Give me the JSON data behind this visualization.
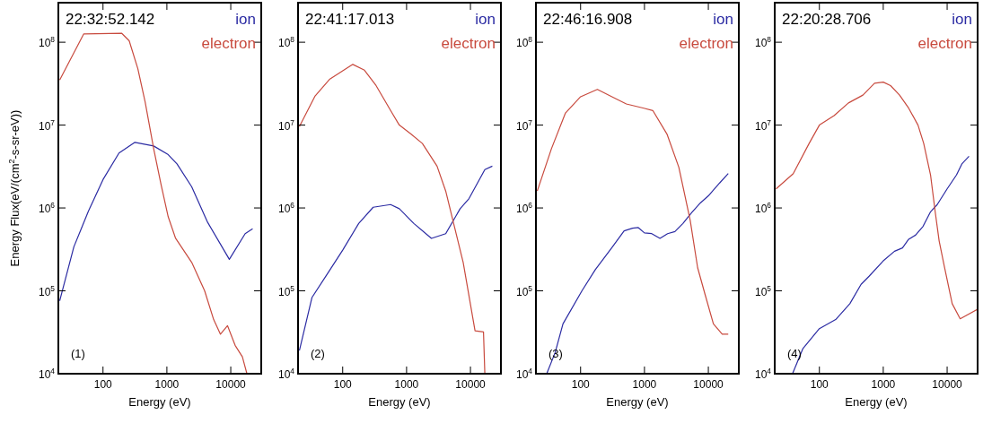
{
  "chart_data": [
    {
      "type": "line",
      "title": "22:32:52.142",
      "xlabel": "Energy (eV)",
      "ylabel": "Energy Flux(eV/(cm$^{2}$-s-sr-eV))",
      "log": "xy",
      "xlim": [
        20,
        30000
      ],
      "ylim": [
        10000,
        300000000
      ],
      "xticks": [
        100,
        1000,
        10000
      ],
      "yticks": [
        {
          "value": 10000,
          "label": "10$^{4}$"
        },
        {
          "value": 100000,
          "label": "10$^{5}$"
        },
        {
          "value": 1000000,
          "label": "10$^{6}$"
        },
        {
          "value": 10000000,
          "label": "10$^{7}$"
        },
        {
          "value": 100000000,
          "label": "10$^{8}$"
        }
      ],
      "legend": "top right",
      "annotations": [
        "(1)"
      ],
      "series": [
        {
          "name": "ion",
          "color": "#2b2ba3",
          "x": [
            21,
            35,
            59,
            100,
            178,
            316,
            620,
            1050,
            1440,
            2450,
            4350,
            9500,
            16800,
            22000
          ],
          "values": [
            76000,
            340000,
            910000,
            2200000,
            4600000,
            6200000,
            5600000,
            4400000,
            3400000,
            1800000,
            670000,
            240000,
            490000,
            560000
          ]
        },
        {
          "name": "electron",
          "color": "#c84a3e",
          "x": [
            21,
            50,
            197,
            257,
            351,
            457,
            624,
            813,
            1050,
            1370,
            2450,
            3900,
            5400,
            6900,
            8900,
            11700,
            15200,
            17900
          ],
          "values": [
            35000000,
            126000000,
            128000000,
            104000000,
            48000000,
            19000000,
            5100000,
            1900000,
            780000,
            430000,
            220000,
            100000,
            45000,
            30000,
            38000,
            22000,
            16000,
            10000
          ]
        }
      ]
    },
    {
      "type": "line",
      "title": "22:41:17.013",
      "xlabel": "Energy (eV)",
      "log": "xy",
      "xlim": [
        20,
        30000
      ],
      "ylim": [
        10000,
        300000000
      ],
      "xticks": [
        100,
        1000,
        10000
      ],
      "yticks": [
        {
          "value": 10000,
          "label": "10$^{4}$"
        },
        {
          "value": 100000,
          "label": "10$^{5}$"
        },
        {
          "value": 1000000,
          "label": "10$^{6}$"
        },
        {
          "value": 10000000,
          "label": "10$^{7}$"
        },
        {
          "value": 100000000,
          "label": "10$^{8}$"
        }
      ],
      "legend": "top right",
      "annotations": [
        "(2)"
      ],
      "series": [
        {
          "name": "ion",
          "color": "#2b2ba3",
          "x": [
            21,
            33,
            56,
            100,
            178,
            300,
            562,
            770,
            1300,
            2450,
            4100,
            6900,
            9500,
            16800,
            22000
          ],
          "values": [
            19000,
            83000,
            155000,
            310000,
            650000,
            1020000,
            1100000,
            980000,
            650000,
            430000,
            490000,
            980000,
            1300000,
            2900000,
            3200000
          ]
        },
        {
          "name": "electron",
          "color": "#c84a3e",
          "x": [
            21,
            37,
            63,
            144,
            219,
            333,
            562,
            770,
            1170,
            1770,
            3000,
            4100,
            5600,
            7700,
            11800,
            16000,
            16800
          ],
          "values": [
            9600000,
            22500000,
            36000000,
            54000000,
            46000000,
            30000000,
            15000000,
            10000000,
            7800000,
            6000000,
            3200000,
            1600000,
            600000,
            220000,
            33000,
            32000,
            10000
          ]
        }
      ]
    },
    {
      "type": "line",
      "title": "22:46:16.908",
      "xlabel": "Energy (eV)",
      "log": "xy",
      "xlim": [
        20,
        30000
      ],
      "ylim": [
        10000,
        300000000
      ],
      "xticks": [
        100,
        1000,
        10000
      ],
      "yticks": [
        {
          "value": 10000,
          "label": "10$^{4}$"
        },
        {
          "value": 100000,
          "label": "10$^{5}$"
        },
        {
          "value": 1000000,
          "label": "10$^{6}$"
        },
        {
          "value": 10000000,
          "label": "10$^{7}$"
        },
        {
          "value": 100000000,
          "label": "10$^{8}$"
        }
      ],
      "legend": "top right",
      "annotations": [
        "(3)"
      ],
      "series": [
        {
          "name": "ion",
          "color": "#2b2ba3",
          "x": [
            29.5,
            40,
            53,
            105,
            170,
            316,
            480,
            650,
            800,
            1000,
            1300,
            1750,
            2300,
            3000,
            4000,
            5500,
            7500,
            10000,
            15000,
            20500
          ],
          "values": [
            10000,
            18000,
            40000,
            100000,
            180000,
            340000,
            530000,
            570000,
            580000,
            500000,
            490000,
            430000,
            490000,
            520000,
            650000,
            880000,
            1150000,
            1400000,
            2000000,
            2600000
          ]
        },
        {
          "name": "electron",
          "color": "#c84a3e",
          "x": [
            21,
            35,
            58,
            100,
            183,
            310,
            520,
            980,
            1350,
            2250,
            3450,
            5200,
            6800,
            8900,
            12000,
            16500,
            20500
          ],
          "values": [
            1600000,
            5200000,
            14000000,
            22000000,
            27000000,
            22000000,
            18000000,
            16000000,
            15000000,
            7800000,
            3100000,
            710000,
            190000,
            90000,
            40000,
            30000,
            30000
          ]
        }
      ]
    },
    {
      "type": "line",
      "title": "22:20:28.706",
      "xlabel": "Energy (eV)",
      "log": "xy",
      "xlim": [
        20,
        30000
      ],
      "ylim": [
        10000,
        300000000
      ],
      "xticks": [
        100,
        1000,
        10000
      ],
      "yticks": [
        {
          "value": 10000,
          "label": "10$^{4}$"
        },
        {
          "value": 100000,
          "label": "10$^{5}$"
        },
        {
          "value": 1000000,
          "label": "10$^{6}$"
        },
        {
          "value": 10000000,
          "label": "10$^{7}$"
        },
        {
          "value": 100000000,
          "label": "10$^{8}$"
        }
      ],
      "legend": "top right",
      "annotations": [
        "(4)"
      ],
      "series": [
        {
          "name": "ion",
          "color": "#2b2ba3",
          "x": [
            38,
            55,
            100,
            180,
            300,
            450,
            600,
            1000,
            1500,
            2000,
            2500,
            3200,
            4200,
            5500,
            7000,
            10000,
            14000,
            17000,
            22000
          ],
          "values": [
            10000,
            20000,
            35000,
            45000,
            70000,
            120000,
            150000,
            230000,
            300000,
            330000,
            420000,
            470000,
            600000,
            900000,
            1100000,
            1700000,
            2500000,
            3400000,
            4200000
          ]
        },
        {
          "name": "electron",
          "color": "#c84a3e",
          "x": [
            21,
            39,
            69,
            100,
            170,
            285,
            480,
            730,
            1000,
            1300,
            1800,
            2500,
            3500,
            4300,
            5500,
            6500,
            7500,
            9000,
            12000,
            16000,
            30000
          ],
          "values": [
            1700000,
            2600000,
            6000000,
            10000000,
            13000000,
            18500000,
            23000000,
            32000000,
            33000000,
            30000000,
            23000000,
            16000000,
            10000000,
            6000000,
            2500000,
            900000,
            400000,
            200000,
            70000,
            46000,
            60000
          ]
        }
      ]
    }
  ]
}
